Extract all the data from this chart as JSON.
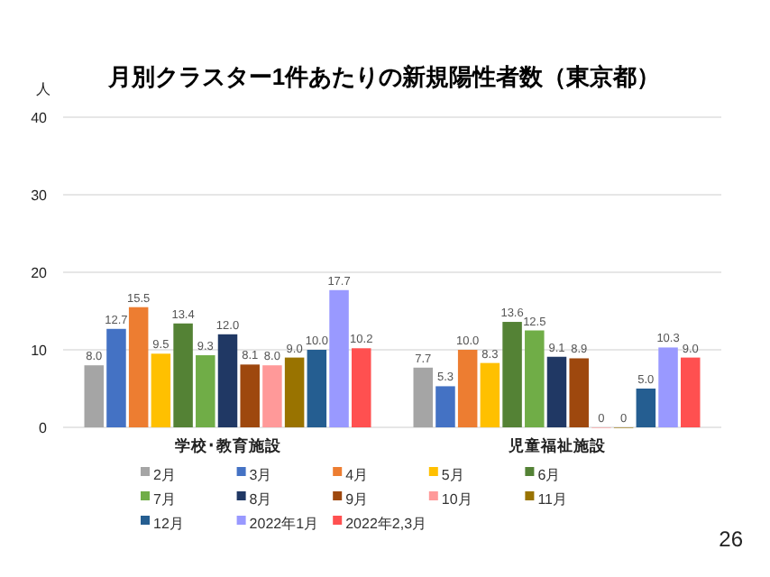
{
  "chart_data": {
    "type": "bar",
    "title": "月別クラスター1件あたりの新規陽性者数（東京都）",
    "ylabel": "人",
    "categories": [
      "学校･教育施設",
      "児童福祉施設"
    ],
    "series": [
      {
        "name": "2月",
        "color": "#a5a5a5",
        "values": [
          8.0,
          7.7
        ],
        "value_labels": [
          "8.0",
          "7.7"
        ]
      },
      {
        "name": "3月",
        "color": "#4472c4",
        "values": [
          12.7,
          5.3
        ],
        "value_labels": [
          "12.7",
          "5.3"
        ]
      },
      {
        "name": "4月",
        "color": "#ed7d31",
        "values": [
          15.5,
          10.0
        ],
        "value_labels": [
          "15.5",
          "10.0"
        ]
      },
      {
        "name": "5月",
        "color": "#ffc000",
        "values": [
          9.5,
          8.3
        ],
        "value_labels": [
          "9.5",
          "8.3"
        ]
      },
      {
        "name": "6月",
        "color": "#548235",
        "values": [
          13.4,
          13.6
        ],
        "value_labels": [
          "13.4",
          "13.6"
        ]
      },
      {
        "name": "7月",
        "color": "#70ad47",
        "values": [
          9.3,
          12.5
        ],
        "value_labels": [
          "9.3",
          "12.5"
        ]
      },
      {
        "name": "8月",
        "color": "#203864",
        "values": [
          12.0,
          9.1
        ],
        "value_labels": [
          "12.0",
          "9.1"
        ]
      },
      {
        "name": "9月",
        "color": "#9e480e",
        "values": [
          8.1,
          8.9
        ],
        "value_labels": [
          "8.1",
          "8.9"
        ]
      },
      {
        "name": "10月",
        "color": "#ff9999",
        "values": [
          8.0,
          0
        ],
        "value_labels": [
          "8.0",
          "0"
        ]
      },
      {
        "name": "11月",
        "color": "#997300",
        "values": [
          9.0,
          0
        ],
        "value_labels": [
          "9.0",
          "0"
        ]
      },
      {
        "name": "12月",
        "color": "#255e91",
        "values": [
          10.0,
          5.0
        ],
        "value_labels": [
          "10.0",
          "5.0"
        ]
      },
      {
        "name": "2022年1月",
        "color": "#9999ff",
        "values": [
          17.7,
          10.3
        ],
        "value_labels": [
          "17.7",
          "10.3"
        ]
      },
      {
        "name": "2022年2,3月",
        "color": "#ff5050",
        "values": [
          10.2,
          9.0
        ],
        "value_labels": [
          "10.2",
          "9.0"
        ]
      }
    ],
    "ylim": [
      0,
      40
    ],
    "yticks": [
      0,
      10,
      20,
      30,
      40
    ],
    "grid": "y",
    "legend": "bottom",
    "annotations": [
      "26"
    ]
  }
}
